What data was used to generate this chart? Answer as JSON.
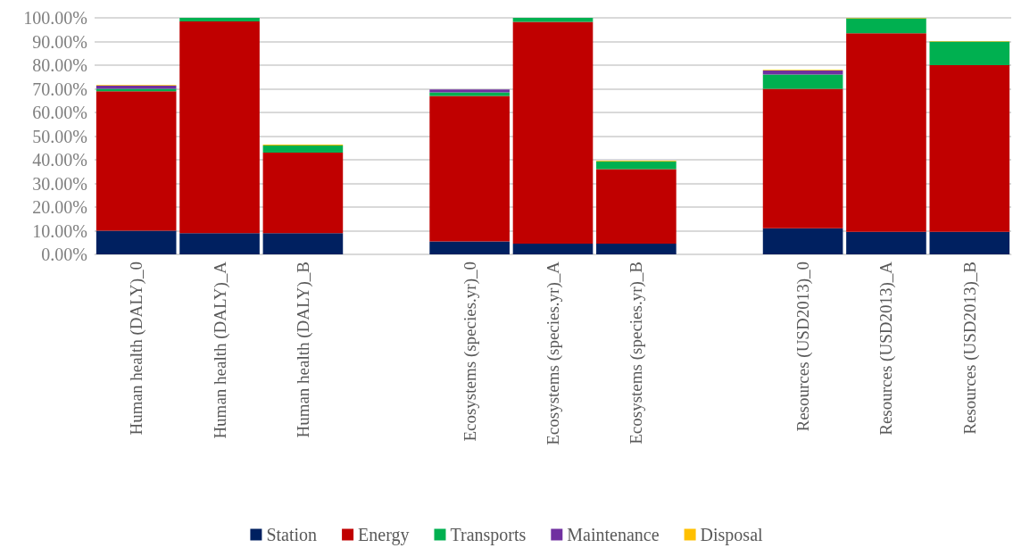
{
  "chart_data": {
    "type": "bar",
    "stacked": true,
    "legend": "bottom",
    "grid": "y",
    "categories": [
      "Human health (DALY)_0",
      "Human health (DALY)_A",
      "Human health (DALY)_B",
      null,
      "Ecosystems (species.yr)_0",
      "Ecosystems (species.yr)_A",
      "Ecosystems (species.yr)_B",
      null,
      "Resources (USD2013)_0",
      "Resources (USD2013)_A",
      "Resources (USD2013)_B"
    ],
    "series": [
      {
        "name": "Station",
        "color": "#002060",
        "values": [
          10,
          9,
          9,
          null,
          5.5,
          4.5,
          4.5,
          null,
          11,
          9.5,
          9.5
        ]
      },
      {
        "name": "Energy",
        "color": "#c00000",
        "values": [
          59,
          89.5,
          34,
          null,
          61.5,
          93.8,
          31.5,
          null,
          59,
          84,
          70.5
        ]
      },
      {
        "name": "Transports",
        "color": "#00b050",
        "values": [
          1,
          1.5,
          3,
          null,
          1.5,
          1.7,
          3.3,
          null,
          6,
          6.3,
          10
        ]
      },
      {
        "name": "Maintenance",
        "color": "#7030a0",
        "values": [
          1.3,
          0,
          0,
          null,
          1.2,
          0,
          0,
          null,
          1.7,
          0,
          0
        ]
      },
      {
        "name": "Disposal",
        "color": "#ffc000",
        "values": [
          0.3,
          0,
          0.4,
          null,
          0,
          0,
          0.3,
          null,
          0.3,
          0.2,
          0.2
        ]
      }
    ],
    "ylim": [
      0,
      100
    ],
    "yticks": [
      {
        "value": 0,
        "label": "0.00%"
      },
      {
        "value": 10,
        "label": "10.00%"
      },
      {
        "value": 20,
        "label": "20.00%"
      },
      {
        "value": 30,
        "label": "30.00%"
      },
      {
        "value": 40,
        "label": "40.00%"
      },
      {
        "value": 50,
        "label": "50.00%"
      },
      {
        "value": 60,
        "label": "60.00%"
      },
      {
        "value": 70,
        "label": "70.00%"
      },
      {
        "value": 80,
        "label": "80.00%"
      },
      {
        "value": 90,
        "label": "90.00%"
      },
      {
        "value": 100,
        "label": "100.00%"
      }
    ]
  }
}
